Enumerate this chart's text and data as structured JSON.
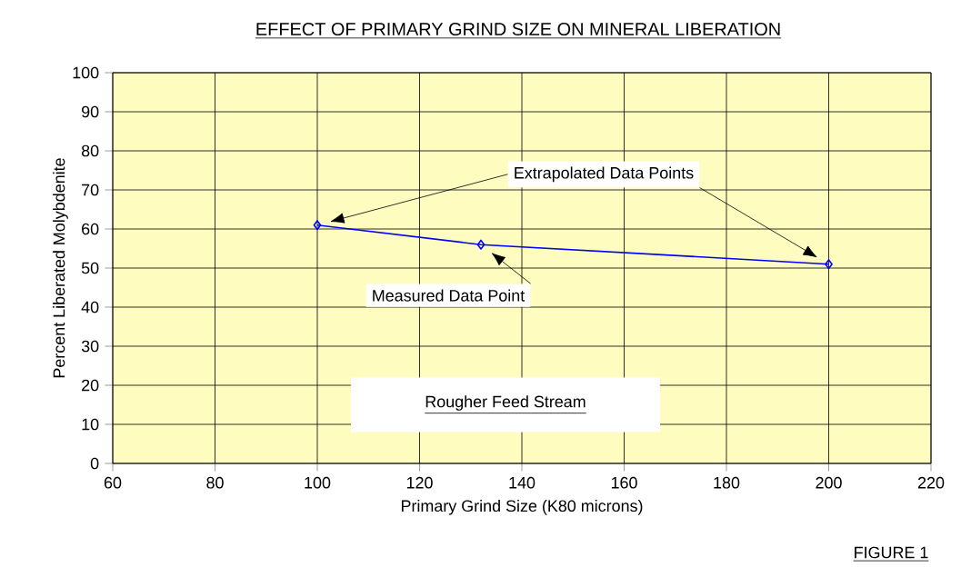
{
  "chart_data": {
    "type": "line",
    "title": "EFFECT OF PRIMARY GRIND SIZE ON MINERAL LIBERATION",
    "xlabel": "Primary Grind Size (K80 microns)",
    "ylabel": "Percent Liberated Molybdenite",
    "x": [
      100,
      132,
      200
    ],
    "series": [
      {
        "color": "#0000ff",
        "values": [
          61,
          56,
          51
        ]
      }
    ],
    "xlim": [
      60,
      220
    ],
    "xticks": [
      60,
      80,
      100,
      120,
      140,
      160,
      180,
      200,
      220
    ],
    "ylim": [
      0,
      100
    ],
    "yticks": [
      0,
      10,
      20,
      30,
      40,
      50,
      60,
      70,
      80,
      90,
      100
    ],
    "grid": true,
    "marker": "diamond",
    "line_style": "solid",
    "annotations": [
      "Extrapolated Data Points",
      {
        "text": "Measured Data Point",
        "x": 132,
        "y": 56
      },
      "Rougher Feed Stream",
      "FIGURE 1"
    ]
  }
}
